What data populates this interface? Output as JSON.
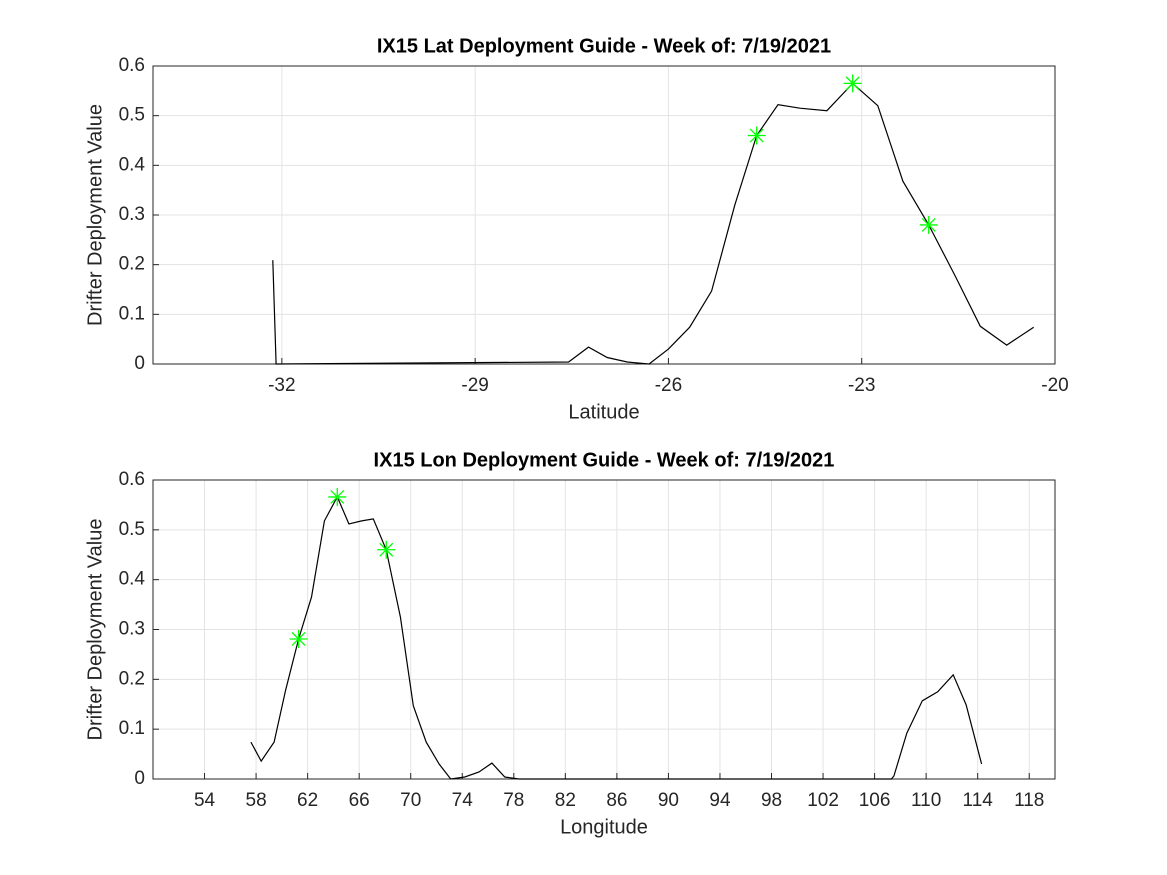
{
  "chart_data": [
    {
      "type": "line",
      "title": "IX15 Lat Deployment Guide - Week of: 7/19/2021",
      "xlabel": "Latitude",
      "ylabel": "Drifter Deployment Value",
      "xlim": [
        -34,
        -20
      ],
      "xticks": [
        -32,
        -29,
        -26,
        -23,
        -20
      ],
      "ylim": [
        0,
        0.6
      ],
      "yticks": [
        0,
        0.1,
        0.2,
        0.3,
        0.4,
        0.5,
        0.6
      ],
      "grid": true,
      "line": {
        "color": "#000000",
        "x": [
          -32.14,
          -32.09,
          -27.55,
          -27.24,
          -26.95,
          -26.64,
          -26.3,
          -26,
          -25.67,
          -25.33,
          -24.97,
          -24.63,
          -24.3,
          -23.96,
          -23.54,
          -23.14,
          -22.75,
          -22.36,
          -21.96,
          -21.56,
          -21.16,
          -20.75,
          -20.33
        ],
        "values": [
          0.209,
          0,
          0.004,
          0.034,
          0.013,
          0.004,
          0,
          0.03,
          0.074,
          0.147,
          0.32,
          0.46,
          0.522,
          0.515,
          0.51,
          0.565,
          0.52,
          0.368,
          0.28,
          0.18,
          0.076,
          0.038,
          0.074
        ]
      },
      "markers": {
        "color": "#00ff00",
        "x": [
          -24.63,
          -23.14,
          -21.96
        ],
        "values": [
          0.46,
          0.565,
          0.28
        ]
      }
    },
    {
      "type": "line",
      "title": "IX15 Lon Deployment Guide - Week of: 7/19/2021",
      "xlabel": "Longitude",
      "ylabel": "Drifter Deployment Value",
      "xlim": [
        50,
        120
      ],
      "xticks": [
        54,
        58,
        62,
        66,
        70,
        74,
        78,
        82,
        86,
        90,
        94,
        98,
        102,
        106,
        110,
        114,
        118
      ],
      "ylim": [
        0,
        0.6
      ],
      "yticks": [
        0,
        0.1,
        0.2,
        0.3,
        0.4,
        0.5,
        0.6
      ],
      "grid": true,
      "line": {
        "color": "#000000",
        "x": [
          57.6,
          58.4,
          59.4,
          60.3,
          61.3,
          62.3,
          63.3,
          64.3,
          65.2,
          66.2,
          67.1,
          68.1,
          69.2,
          70.2,
          71.2,
          72.2,
          73.1,
          74.2,
          75.3,
          76.3,
          77.3,
          78.4,
          107.3,
          107.5,
          108.5,
          109.7,
          110.9,
          112.1,
          113.1,
          114.3
        ],
        "values": [
          0.074,
          0.036,
          0.074,
          0.179,
          0.281,
          0.365,
          0.518,
          0.566,
          0.512,
          0.518,
          0.522,
          0.46,
          0.325,
          0.147,
          0.074,
          0.03,
          0,
          0.004,
          0.014,
          0.032,
          0.004,
          0,
          0,
          0.006,
          0.092,
          0.157,
          0.175,
          0.209,
          0.149,
          0.03
        ]
      },
      "markers": {
        "color": "#00ff00",
        "x": [
          61.3,
          64.3,
          68.1
        ],
        "values": [
          0.281,
          0.566,
          0.46
        ]
      }
    }
  ]
}
